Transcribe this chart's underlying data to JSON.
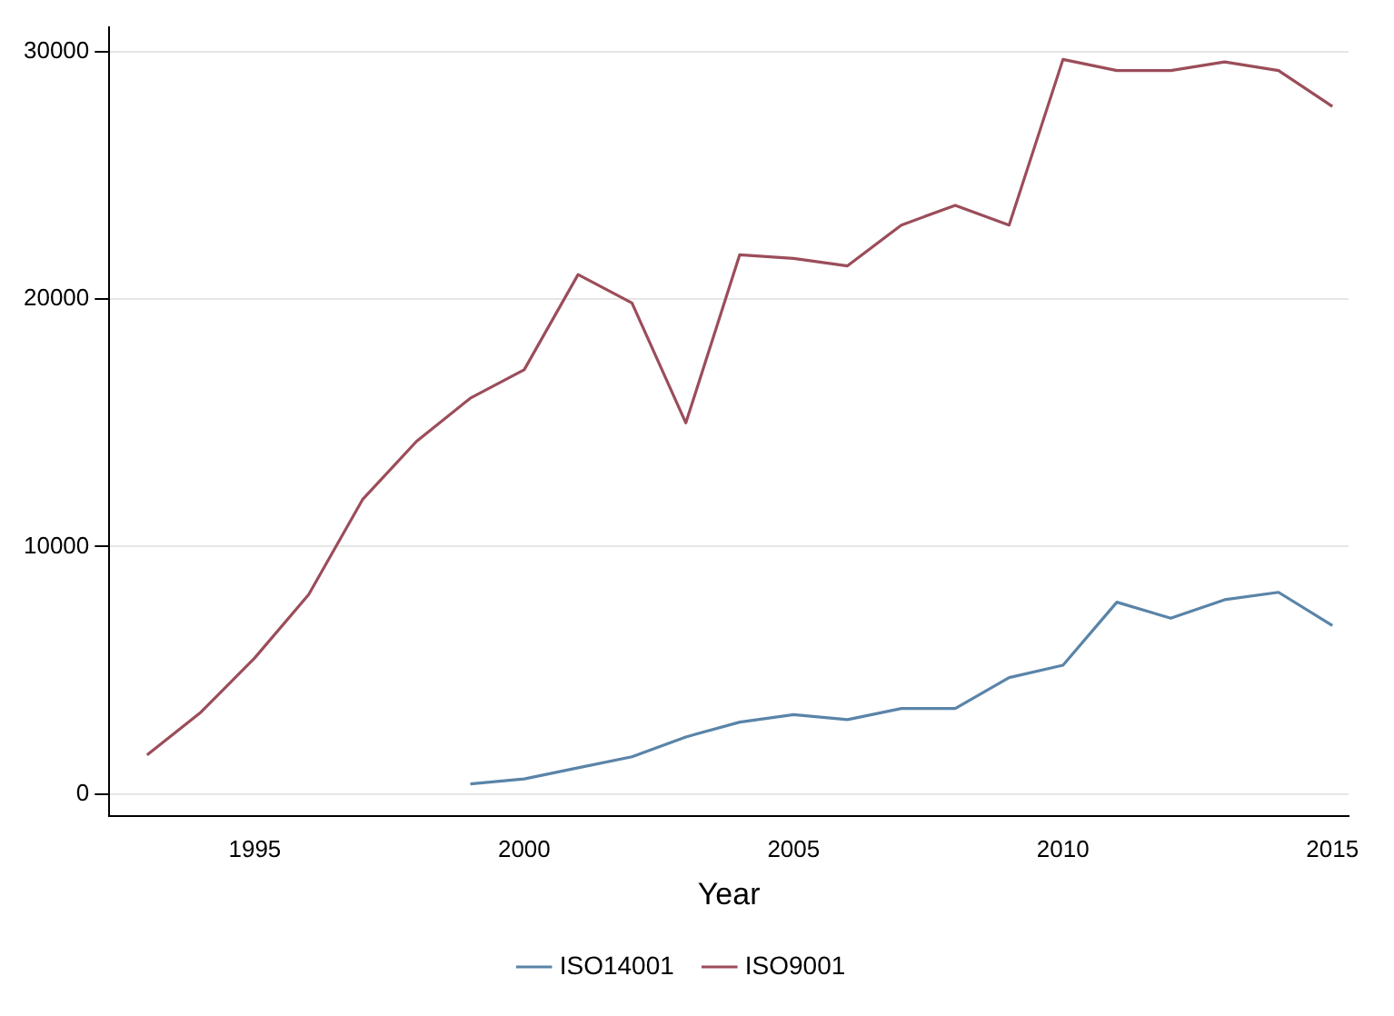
{
  "chart_data": {
    "type": "line",
    "xlabel": "Year",
    "x": [
      1993,
      1994,
      1995,
      1996,
      1997,
      1998,
      1999,
      2000,
      2001,
      2002,
      2003,
      2004,
      2005,
      2006,
      2007,
      2008,
      2009,
      2010,
      2011,
      2012,
      2013,
      2014,
      2015
    ],
    "series": [
      {
        "name": "ISO14001",
        "color": "#5a84a8",
        "values": [
          null,
          null,
          null,
          null,
          null,
          null,
          400,
          600,
          1050,
          1500,
          2300,
          2900,
          3200,
          3000,
          3450,
          3450,
          4700,
          5200,
          7750,
          7100,
          7850,
          8150,
          6800
        ]
      },
      {
        "name": "ISO9001",
        "color": "#9b4d5a",
        "values": [
          1570,
          3300,
          5500,
          8060,
          11900,
          14250,
          16000,
          17150,
          21000,
          19850,
          15000,
          21800,
          21650,
          21350,
          23000,
          23800,
          23000,
          29700,
          29250,
          29250,
          29600,
          29250,
          27800
        ]
      }
    ],
    "xlim": [
      1992.3,
      2015.3
    ],
    "xticks": [
      1995,
      2000,
      2005,
      2010,
      2015
    ],
    "ylim": [
      -900,
      31000
    ],
    "yticks": [
      0,
      10000,
      20000,
      30000
    ],
    "grid": "y",
    "legend": "bottom",
    "marker": "none",
    "line_style": "solid"
  }
}
